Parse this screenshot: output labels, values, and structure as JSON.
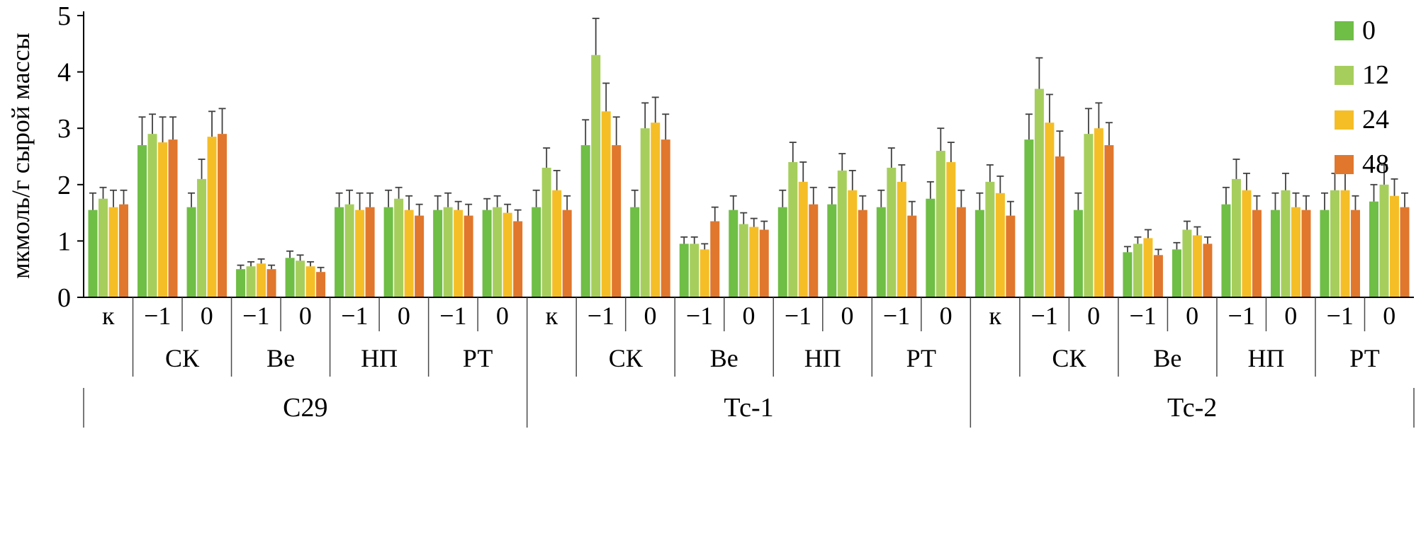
{
  "chart_data": {
    "type": "bar",
    "title": "",
    "xlabel": "",
    "ylabel": "мкмоль/г сырой массы",
    "ylim": [
      0,
      5
    ],
    "yticks": [
      0,
      1,
      2,
      3,
      4,
      5
    ],
    "grid": false,
    "legend_position": "top-right",
    "error_bars": "plus",
    "series": [
      {
        "name": "0",
        "color": "#6FBE45"
      },
      {
        "name": "12",
        "color": "#A6CE5D"
      },
      {
        "name": "24",
        "color": "#F5BE27"
      },
      {
        "name": "48",
        "color": "#E0772D"
      }
    ],
    "clusters": [
      {
        "label": "С29",
        "sections": [
          {
            "label": "",
            "ticks": [
              {
                "tick": "к",
                "values": [
                  1.55,
                  1.75,
                  1.6,
                  1.65
                ],
                "errors": [
                  0.3,
                  0.2,
                  0.3,
                  0.25
                ]
              }
            ]
          },
          {
            "label": "СК",
            "ticks": [
              {
                "tick": "−1",
                "values": [
                  2.7,
                  2.9,
                  2.75,
                  2.8
                ],
                "errors": [
                  0.5,
                  0.35,
                  0.45,
                  0.4
                ]
              },
              {
                "tick": "0",
                "values": [
                  1.6,
                  2.1,
                  2.85,
                  2.9
                ],
                "errors": [
                  0.25,
                  0.35,
                  0.45,
                  0.45
                ]
              }
            ]
          },
          {
            "label": "Ве",
            "ticks": [
              {
                "tick": "−1",
                "values": [
                  0.5,
                  0.55,
                  0.6,
                  0.5
                ],
                "errors": [
                  0.07,
                  0.08,
                  0.08,
                  0.07
                ]
              },
              {
                "tick": "0",
                "values": [
                  0.7,
                  0.65,
                  0.55,
                  0.45
                ],
                "errors": [
                  0.12,
                  0.1,
                  0.08,
                  0.08
                ]
              }
            ]
          },
          {
            "label": "НП",
            "ticks": [
              {
                "tick": "−1",
                "values": [
                  1.6,
                  1.65,
                  1.55,
                  1.6
                ],
                "errors": [
                  0.25,
                  0.25,
                  0.3,
                  0.25
                ]
              },
              {
                "tick": "0",
                "values": [
                  1.6,
                  1.75,
                  1.55,
                  1.45
                ],
                "errors": [
                  0.3,
                  0.2,
                  0.25,
                  0.2
                ]
              }
            ]
          },
          {
            "label": "РТ",
            "ticks": [
              {
                "tick": "−1",
                "values": [
                  1.55,
                  1.6,
                  1.55,
                  1.45
                ],
                "errors": [
                  0.25,
                  0.25,
                  0.15,
                  0.2
                ]
              },
              {
                "tick": "0",
                "values": [
                  1.55,
                  1.6,
                  1.5,
                  1.35
                ],
                "errors": [
                  0.2,
                  0.2,
                  0.15,
                  0.2
                ]
              }
            ]
          }
        ]
      },
      {
        "label": "Тс-1",
        "sections": [
          {
            "label": "",
            "ticks": [
              {
                "tick": "к",
                "values": [
                  1.6,
                  2.3,
                  1.9,
                  1.55
                ],
                "errors": [
                  0.3,
                  0.35,
                  0.35,
                  0.25
                ]
              }
            ]
          },
          {
            "label": "СК",
            "ticks": [
              {
                "tick": "−1",
                "values": [
                  2.7,
                  4.3,
                  3.3,
                  2.7
                ],
                "errors": [
                  0.45,
                  0.65,
                  0.5,
                  0.5
                ]
              },
              {
                "tick": "0",
                "values": [
                  1.6,
                  3.0,
                  3.1,
                  2.8
                ],
                "errors": [
                  0.3,
                  0.45,
                  0.45,
                  0.45
                ]
              }
            ]
          },
          {
            "label": "Ве",
            "ticks": [
              {
                "tick": "−1",
                "values": [
                  0.95,
                  0.95,
                  0.85,
                  1.35
                ],
                "errors": [
                  0.12,
                  0.12,
                  0.1,
                  0.25
                ]
              },
              {
                "tick": "0",
                "values": [
                  1.55,
                  1.3,
                  1.25,
                  1.2
                ],
                "errors": [
                  0.25,
                  0.2,
                  0.15,
                  0.15
                ]
              }
            ]
          },
          {
            "label": "НП",
            "ticks": [
              {
                "tick": "−1",
                "values": [
                  1.6,
                  2.4,
                  2.05,
                  1.65
                ],
                "errors": [
                  0.3,
                  0.35,
                  0.35,
                  0.3
                ]
              },
              {
                "tick": "0",
                "values": [
                  1.65,
                  2.25,
                  1.9,
                  1.55
                ],
                "errors": [
                  0.3,
                  0.3,
                  0.35,
                  0.25
                ]
              }
            ]
          },
          {
            "label": "РТ",
            "ticks": [
              {
                "tick": "−1",
                "values": [
                  1.6,
                  2.3,
                  2.05,
                  1.45
                ],
                "errors": [
                  0.3,
                  0.35,
                  0.3,
                  0.25
                ]
              },
              {
                "tick": "0",
                "values": [
                  1.75,
                  2.6,
                  2.4,
                  1.6
                ],
                "errors": [
                  0.3,
                  0.4,
                  0.35,
                  0.3
                ]
              }
            ]
          }
        ]
      },
      {
        "label": "Тс-2",
        "sections": [
          {
            "label": "",
            "ticks": [
              {
                "tick": "к",
                "values": [
                  1.55,
                  2.05,
                  1.85,
                  1.45
                ],
                "errors": [
                  0.3,
                  0.3,
                  0.3,
                  0.25
                ]
              }
            ]
          },
          {
            "label": "СК",
            "ticks": [
              {
                "tick": "−1",
                "values": [
                  2.8,
                  3.7,
                  3.1,
                  2.5
                ],
                "errors": [
                  0.45,
                  0.55,
                  0.5,
                  0.45
                ]
              },
              {
                "tick": "0",
                "values": [
                  1.55,
                  2.9,
                  3.0,
                  2.7
                ],
                "errors": [
                  0.3,
                  0.45,
                  0.45,
                  0.4
                ]
              }
            ]
          },
          {
            "label": "Ве",
            "ticks": [
              {
                "tick": "−1",
                "values": [
                  0.8,
                  0.95,
                  1.05,
                  0.75
                ],
                "errors": [
                  0.1,
                  0.12,
                  0.15,
                  0.1
                ]
              },
              {
                "tick": "0",
                "values": [
                  0.85,
                  1.2,
                  1.1,
                  0.95
                ],
                "errors": [
                  0.12,
                  0.15,
                  0.15,
                  0.12
                ]
              }
            ]
          },
          {
            "label": "НП",
            "ticks": [
              {
                "tick": "−1",
                "values": [
                  1.65,
                  2.1,
                  1.9,
                  1.55
                ],
                "errors": [
                  0.3,
                  0.35,
                  0.3,
                  0.25
                ]
              },
              {
                "tick": "0",
                "values": [
                  1.55,
                  1.9,
                  1.6,
                  1.55
                ],
                "errors": [
                  0.3,
                  0.3,
                  0.25,
                  0.25
                ]
              }
            ]
          },
          {
            "label": "РТ",
            "ticks": [
              {
                "tick": "−1",
                "values": [
                  1.55,
                  1.9,
                  1.9,
                  1.55
                ],
                "errors": [
                  0.3,
                  0.3,
                  0.3,
                  0.25
                ]
              },
              {
                "tick": "0",
                "values": [
                  1.7,
                  2.0,
                  1.8,
                  1.6
                ],
                "errors": [
                  0.3,
                  0.35,
                  0.3,
                  0.25
                ]
              }
            ]
          }
        ]
      }
    ]
  },
  "legend": {
    "items": [
      {
        "label": "0"
      },
      {
        "label": "12"
      },
      {
        "label": "24"
      },
      {
        "label": "48"
      }
    ]
  },
  "axis": {
    "line_color": "#000000",
    "separator_color": "#4a4a4a",
    "error_bar_color": "#404040"
  }
}
